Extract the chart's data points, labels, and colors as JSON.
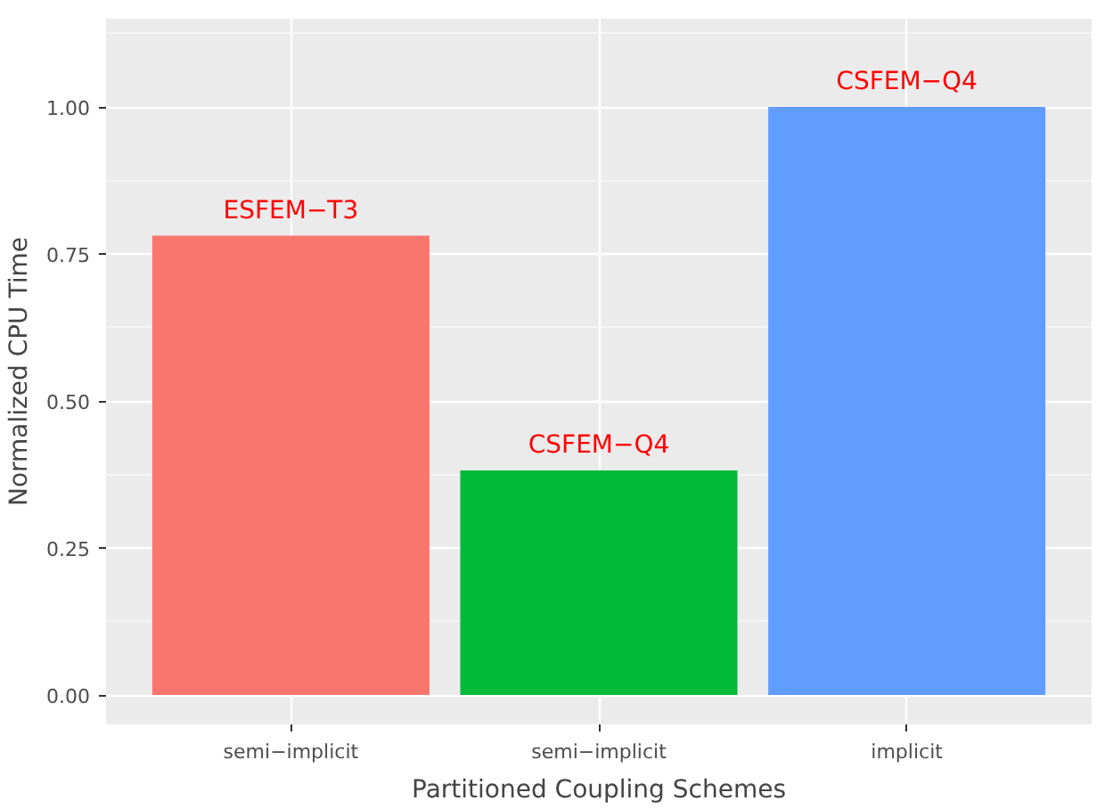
{
  "chart_data": {
    "type": "bar",
    "categories": [
      "semi−implicit",
      "semi−implicit",
      "implicit"
    ],
    "values": [
      0.781,
      0.382,
      1.0
    ],
    "colors": [
      "#f8766d",
      "#00ba38",
      "#619cff"
    ],
    "xlabel": "Partitioned Coupling Schemes",
    "ylabel": "Normalized CPU Time",
    "ylim": [
      -0.05,
      1.15
    ],
    "yticks": [
      {
        "value": 0,
        "label": "0.00"
      },
      {
        "value": 0.25,
        "label": "0.25"
      },
      {
        "value": 0.5,
        "label": "0.50"
      },
      {
        "value": 0.75,
        "label": "0.75"
      },
      {
        "value": 1,
        "label": "1.00"
      }
    ],
    "grid": true,
    "annotations": [
      "ESFEM−T3",
      "CSFEM−Q4",
      "CSFEM−Q4"
    ]
  }
}
